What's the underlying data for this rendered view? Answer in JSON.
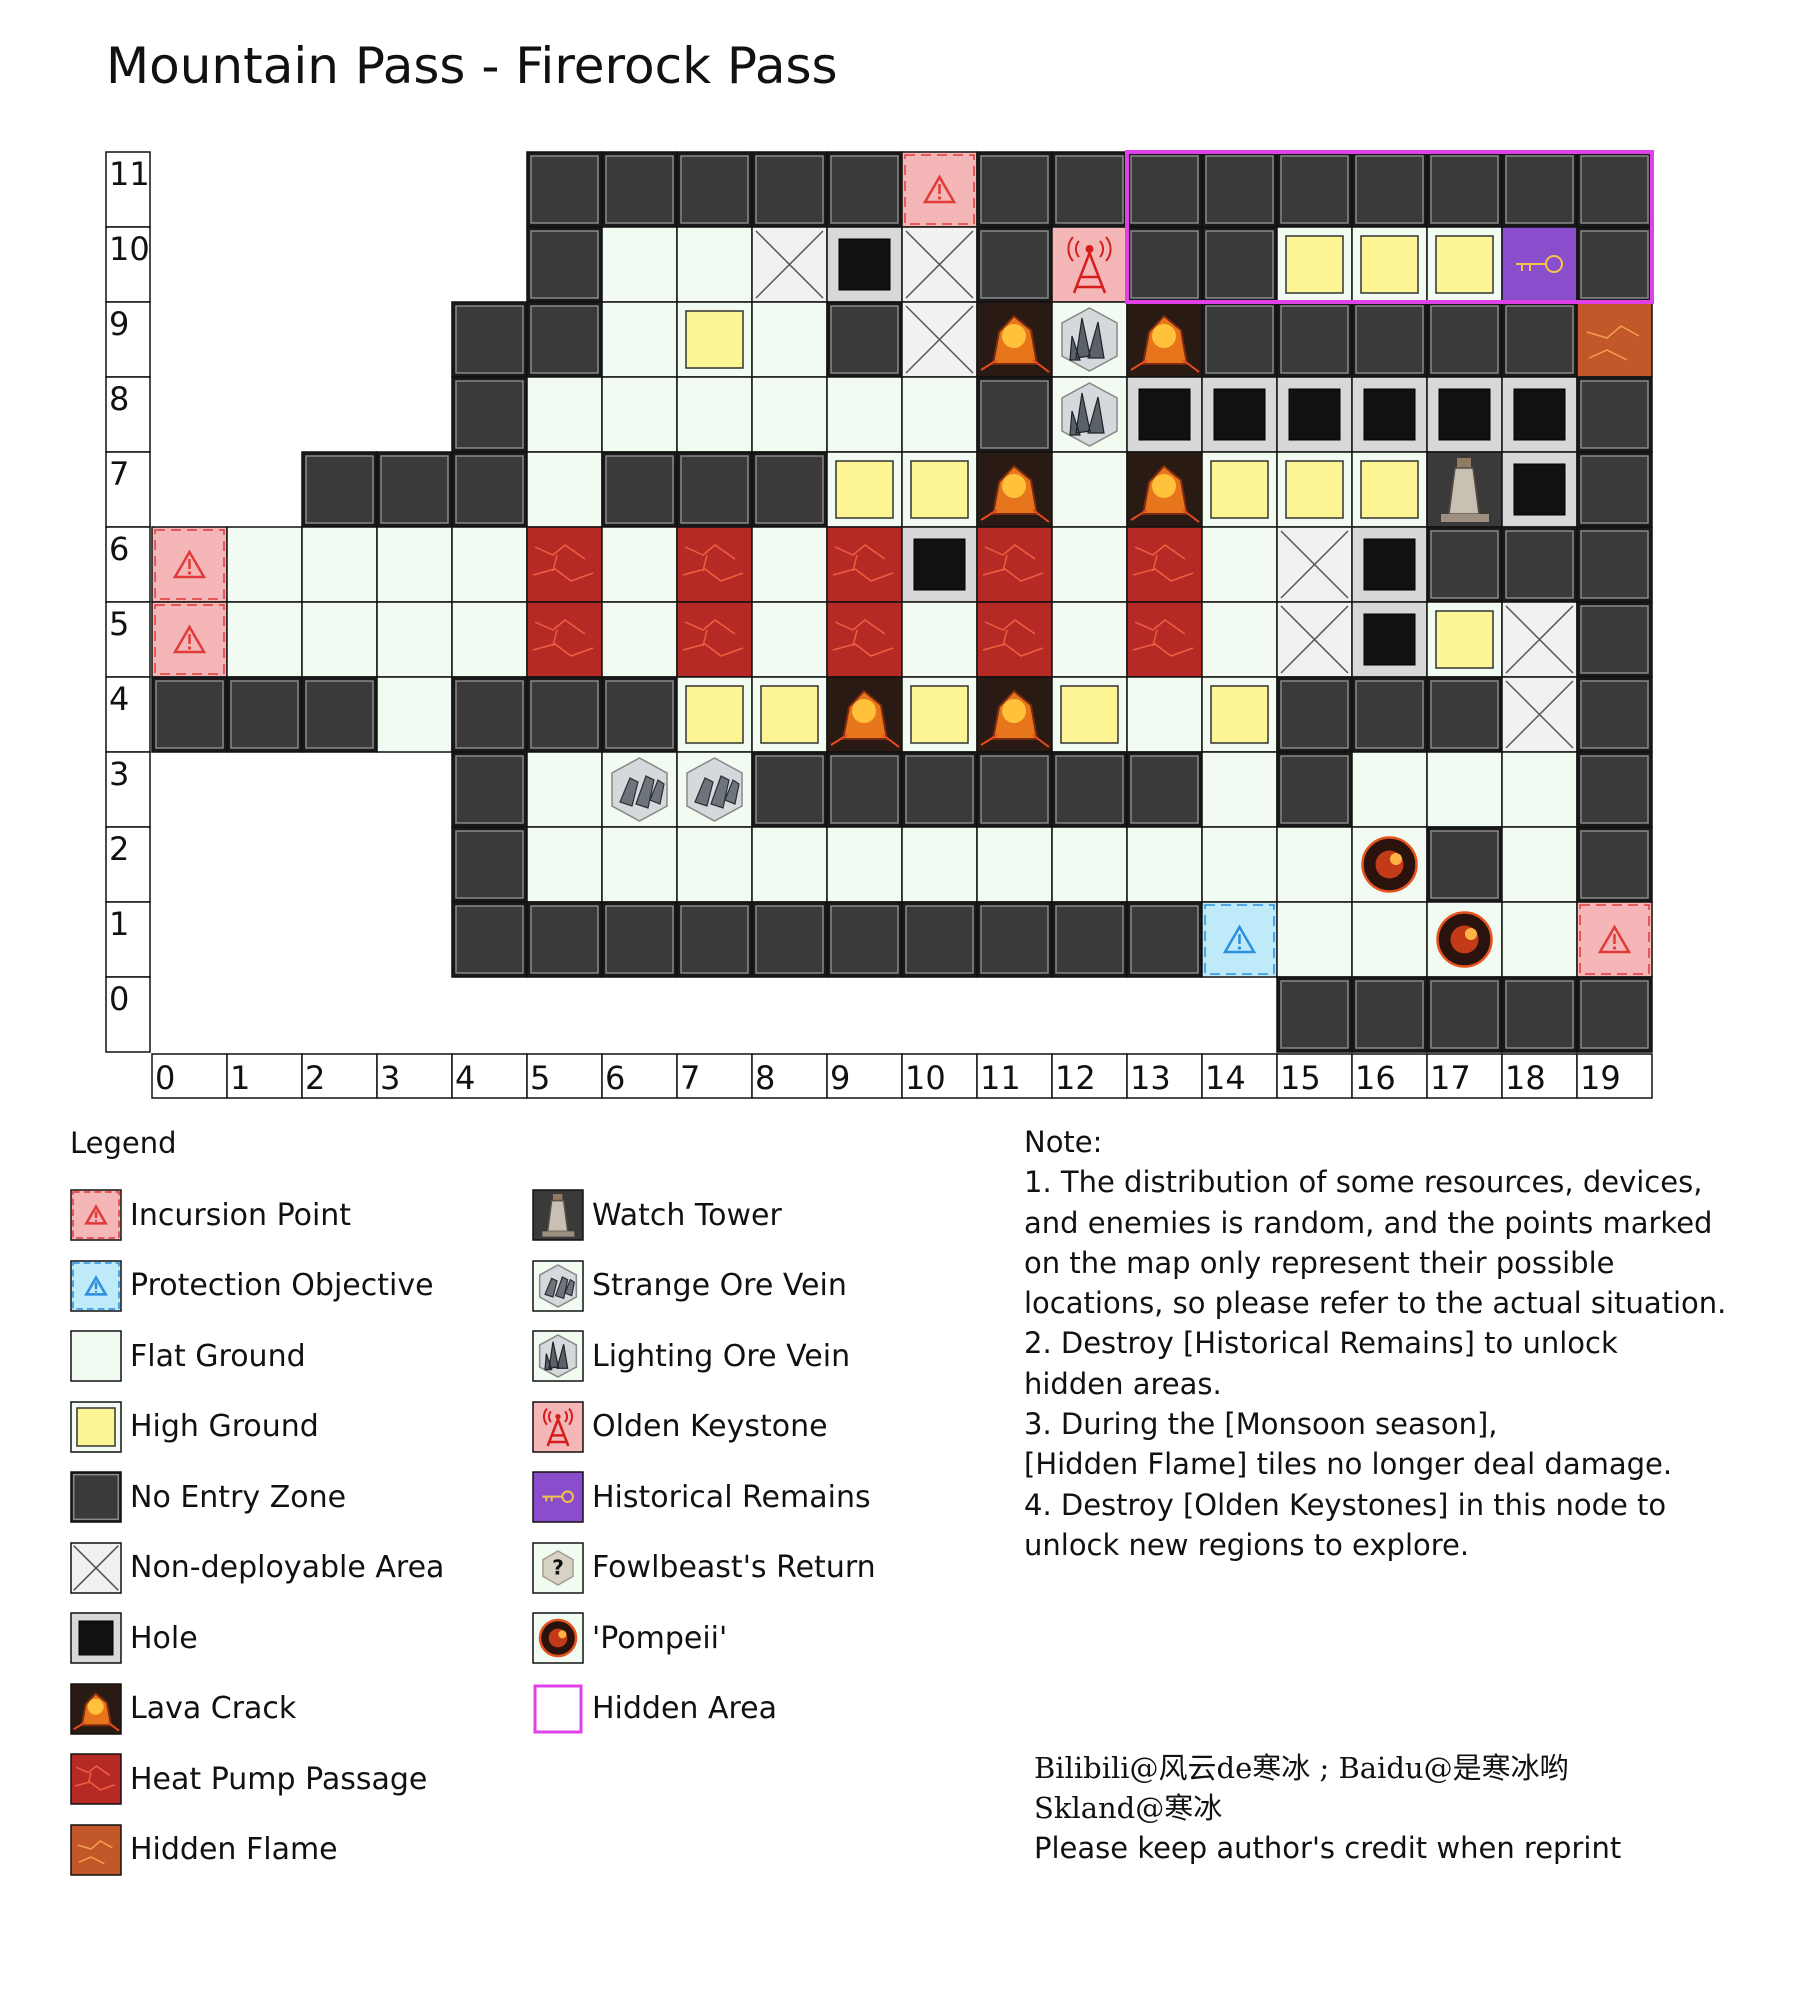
{
  "title": "Mountain Pass - Firerock Pass",
  "grid": {
    "cols": 20,
    "rows": 12,
    "row_labels": [
      "11",
      "10",
      "9",
      "8",
      "7",
      "6",
      "5",
      "4",
      "3",
      "2",
      "1",
      "0"
    ],
    "col_labels": [
      "0",
      "1",
      "2",
      "3",
      "4",
      "5",
      "6",
      "7",
      "8",
      "9",
      "10",
      "11",
      "12",
      "13",
      "14",
      "15",
      "16",
      "17",
      "18",
      "19"
    ],
    "tiles": [
      ".....DDDDDIDDDDDDDDD",
      ".....DFFXOXDKDDHHHRD",
      "....DDFHFDXLSLDDDDDT",
      "....DFFFFFFDSOOOOOOD",
      "..DDDFDDDHHLFLHHHWOD",
      "IFFFFPFPFPOPFPFXODDD",
      "IFFFFPFPFPFPFPFXOHXD",
      "DDDFDDDHHLHLHFHDDDXD",
      "....DFGGDDDDDDFDFFFD",
      "....DFFFFFFFFFFFEDFD",
      "....DDDDDDDDDDAFFEFI",
      "...............DDDDD"
    ],
    "hidden_area": {
      "col_start": 13,
      "col_end": 19,
      "row_top": 11,
      "row_bottom": 10
    }
  },
  "legend": {
    "title": "Legend",
    "items": [
      {
        "key": "incursion",
        "label": "Incursion Point"
      },
      {
        "key": "protection",
        "label": "Protection Objective"
      },
      {
        "key": "flat",
        "label": "Flat Ground"
      },
      {
        "key": "high",
        "label": "High Ground"
      },
      {
        "key": "noentry",
        "label": "No Entry Zone"
      },
      {
        "key": "nondeploy",
        "label": "Non-deployable Area"
      },
      {
        "key": "hole",
        "label": "Hole"
      },
      {
        "key": "lava",
        "label": "Lava Crack"
      },
      {
        "key": "heatpump",
        "label": "Heat Pump Passage"
      },
      {
        "key": "hiddenflame",
        "label": "Hidden Flame"
      },
      {
        "key": "watchtower",
        "label": "Watch Tower"
      },
      {
        "key": "strangeore",
        "label": "Strange Ore Vein"
      },
      {
        "key": "lightore",
        "label": "Lighting Ore Vein"
      },
      {
        "key": "keystone",
        "label": "Olden Keystone"
      },
      {
        "key": "remains",
        "label": "Historical Remains"
      },
      {
        "key": "fowl",
        "label": "Fowlbeast's Return"
      },
      {
        "key": "pompeii",
        "label": "'Pompeii'"
      },
      {
        "key": "hiddenarea",
        "label": "Hidden Area"
      }
    ]
  },
  "note": {
    "heading": "Note:",
    "lines": [
      "1. The distribution of some resources, devices,",
      "and enemies is random, and the points marked",
      "on the map only represent their possible",
      "locations, so please refer to the actual situation.",
      "2. Destroy [Historical Remains] to unlock",
      "hidden areas.",
      "3. During the [Monsoon season],",
      "[Hidden Flame] tiles no longer deal damage.",
      "4. Destroy [Olden Keystones] in this node to",
      "unlock new regions to explore."
    ]
  },
  "credit": {
    "line1": "Bilibili@风云de寒冰 ; Baidu@是寒冰哟",
    "line2": "Skland@寒冰",
    "line3": "Please keep author's credit when reprint"
  },
  "colors": {
    "flat": "#f2fbf1",
    "high": "#fdf494",
    "noentry": "#3a3a3a",
    "incursion": "#f4b6b6",
    "protection": "#bfeaf9",
    "hole": "#d8d8d8",
    "heatpump": "#b52a24",
    "hiddenflame": "#c2582a",
    "remains": "#8a4dcc",
    "hidden_border": "#e040e8",
    "nondeploy": "#f1f1f1"
  }
}
